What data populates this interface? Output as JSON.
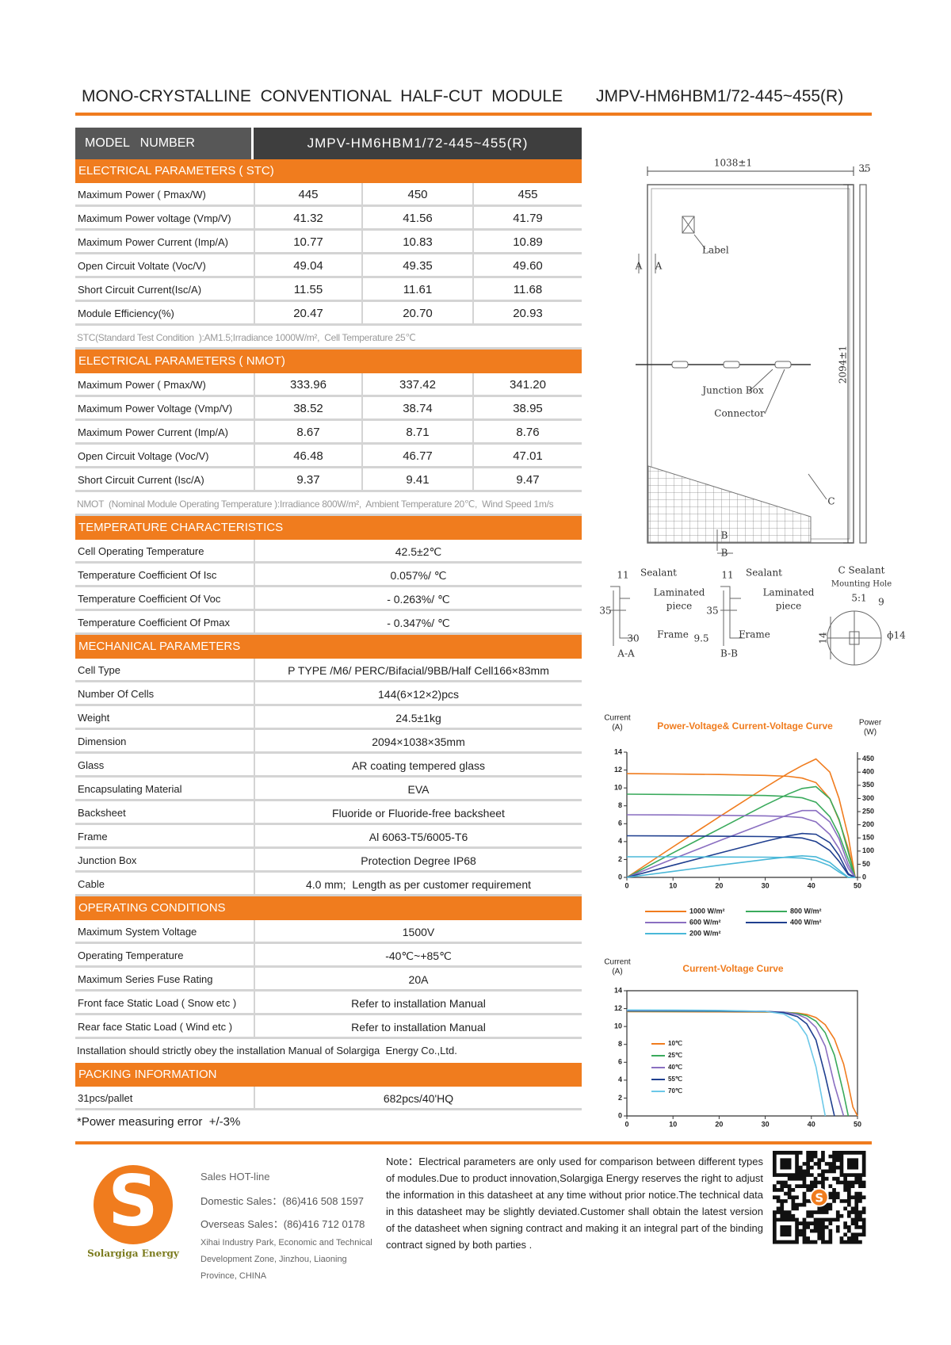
{
  "header": {
    "title": "MONO-CRYSTALLINE  CONVENTIONAL  HALF-CUT  MODULE",
    "model": "JMPV-HM6HBM1/72-445~455(R)"
  },
  "table": {
    "model_label": "MODEL   NUMBER",
    "model_value": "JMPV-HM6HBM1/72-445~455(R)",
    "sections": [
      {
        "title": "ELECTRICAL PARAMETERS ( STC)",
        "rows": [
          [
            "Maximum Power ( Pmax/W)",
            "445",
            "450",
            "455"
          ],
          [
            "Maximum Power voltage (Vmp/V)",
            "41.32",
            "41.56",
            "41.79"
          ],
          [
            "Maximum Power Current (Imp/A)",
            "10.77",
            "10.83",
            "10.89"
          ],
          [
            "Open Circuit Voltate (Voc/V)",
            "49.04",
            "49.35",
            "49.60"
          ],
          [
            "Short Circuit Current(Isc/A)",
            "11.55",
            "11.61",
            "11.68"
          ],
          [
            "Module Efficiency(%)",
            "20.47",
            "20.70",
            "20.93"
          ]
        ],
        "note": "STC(Standard Test Condition  ):AM1.5;Irradiance 1000W/m²,  Cell Temperature 25℃"
      },
      {
        "title": "ELECTRICAL PARAMETERS ( NMOT)",
        "rows": [
          [
            "Maximum Power ( Pmax/W)",
            "333.96",
            "337.42",
            "341.20"
          ],
          [
            "Maximum Power Voltage (Vmp/V)",
            "38.52",
            "38.74",
            "38.95"
          ],
          [
            "Maximum Power Current (Imp/A)",
            "8.67",
            "8.71",
            "8.76"
          ],
          [
            "Open Circuit Voltage (Voc/V)",
            "46.48",
            "46.77",
            "47.01"
          ],
          [
            "Short Circuit Current (Isc/A)",
            "9.37",
            "9.41",
            "9.47"
          ]
        ],
        "note": "NMOT  (Nominal Module Operating Temperature ):Irradiance 800W/m²,  Ambient Temperature 20℃,  Wind Speed 1m/s"
      },
      {
        "title": "TEMPERATURE CHARACTERISTICS",
        "rows": [
          [
            "Cell Operating Temperature",
            "42.5±2℃"
          ],
          [
            "Temperature Coefficient Of Isc",
            "0.057%/ ℃"
          ],
          [
            "Temperature Coefficient Of Voc",
            "- 0.263%/ ℃"
          ],
          [
            "Temperature Coefficient Of Pmax",
            "- 0.347%/ ℃"
          ]
        ]
      },
      {
        "title": "MECHANICAL PARAMETERS",
        "rows": [
          [
            "Cell Type",
            "P TYPE /M6/ PERC/Bifacial/9BB/Half Cell166×83mm"
          ],
          [
            "Number Of Cells",
            "144(6×12×2)pcs"
          ],
          [
            "Weight",
            "24.5±1kg"
          ],
          [
            "Dimension",
            "2094×1038×35mm"
          ],
          [
            "Glass",
            "AR coating tempered glass"
          ],
          [
            "Encapsulating Material",
            "EVA"
          ],
          [
            "Backsheet",
            "Fluoride or Fluoride-free backsheet"
          ],
          [
            "Frame",
            "Al 6063-T5/6005-T6"
          ],
          [
            "Junction Box",
            "Protection Degree IP68"
          ],
          [
            "Cable",
            "4.0 mm;  Length as per customer requirement"
          ]
        ]
      },
      {
        "title": "OPERATING CONDITIONS",
        "rows": [
          [
            "Maximum System Voltage",
            "1500V"
          ],
          [
            "Operating Temperature",
            "-40℃~+85℃"
          ],
          [
            "Maximum Series Fuse Rating",
            "20A"
          ],
          [
            "Front face Static Load ( Snow etc )",
            "Refer to installation Manual"
          ],
          [
            "Rear face Static Load ( Wind etc )",
            "Refer to installation Manual"
          ]
        ],
        "note": "Installation should strictly obey the installation Manual of Solargiga  Energy Co.,Ltd."
      },
      {
        "title": "PACKING INFORMATION",
        "rows": [
          [
            "31pcs/pallet",
            "682pcs/40'HQ"
          ]
        ],
        "note": "*Power measuring error  +/-3%"
      }
    ]
  },
  "drawing": {
    "labels": [
      "1038±1",
      "35",
      "Label",
      "A",
      "A",
      "2094±1",
      "Junction Box",
      "Connector",
      "C",
      "B",
      "B",
      "11",
      "Sealant",
      "Laminated",
      "piece",
      "35",
      "30",
      "Frame",
      "A-A",
      "11",
      "Sealant",
      "Laminated",
      "piece",
      "35",
      "9.5",
      "Frame",
      "B-B",
      "C Sealant",
      "Mounting Hole",
      "5:1",
      "9",
      "14",
      "ϕ14"
    ]
  },
  "chart_data": [
    {
      "type": "line",
      "title": "Power-Voltage& Current-Voltage Curve",
      "ylabel": [
        "Current",
        "(A)"
      ],
      "y2label": [
        "Power",
        "(W)"
      ],
      "x": [
        0,
        10,
        20,
        30,
        35,
        38,
        41,
        44,
        46,
        48,
        49.5
      ],
      "xlim": [
        0,
        50
      ],
      "xticks": [
        0,
        10,
        20,
        30,
        40,
        50
      ],
      "ylim": [
        0,
        14
      ],
      "yticks": [
        0,
        2,
        4,
        6,
        8,
        10,
        12,
        14
      ],
      "y2lim": [
        0,
        476
      ],
      "y2ticks": [
        0,
        50,
        100,
        150,
        200,
        250,
        300,
        350,
        400,
        450
      ],
      "series": [
        {
          "name": "1000 W/m²",
          "color": "#f07c1e",
          "current": [
            11.6,
            11.55,
            11.5,
            11.4,
            11.3,
            11.1,
            10.6,
            8.8,
            6.4,
            3.2,
            0
          ],
          "power": [
            0,
            116,
            230,
            342,
            396,
            425,
            450,
            400,
            300,
            155,
            0
          ]
        },
        {
          "name": "800 W/m²",
          "color": "#3aaa5c",
          "current": [
            9.3,
            9.27,
            9.22,
            9.15,
            9.05,
            8.9,
            8.4,
            6.8,
            4.8,
            2,
            0
          ],
          "power": [
            0,
            93,
            184,
            275,
            317,
            338,
            345,
            299,
            221,
            96,
            0
          ]
        },
        {
          "name": "600 W/m²",
          "color": "#8a6fc1",
          "current": [
            7.0,
            6.98,
            6.94,
            6.88,
            6.8,
            6.68,
            6.2,
            4.8,
            3.2,
            1,
            0
          ],
          "power": [
            0,
            70,
            139,
            206,
            238,
            254,
            254,
            211,
            147,
            48,
            0
          ]
        },
        {
          "name": "400 W/m²",
          "color": "#1f3f8f",
          "current": [
            4.65,
            4.63,
            4.6,
            4.56,
            4.5,
            4.4,
            4.0,
            3.0,
            1.8,
            0.3,
            0
          ],
          "power": [
            0,
            46,
            92,
            137,
            158,
            167,
            164,
            132,
            83,
            14,
            0
          ]
        },
        {
          "name": "200 W/m²",
          "color": "#4ab8d8",
          "current": [
            2.3,
            2.3,
            2.28,
            2.26,
            2.22,
            2.15,
            1.9,
            1.3,
            0.6,
            0,
            0
          ],
          "power": [
            0,
            23,
            46,
            68,
            78,
            82,
            78,
            57,
            28,
            0,
            0
          ]
        }
      ]
    },
    {
      "type": "line",
      "title": "Current-Voltage Curve",
      "ylabel": [
        "Current",
        "(A)"
      ],
      "x": [
        0,
        10,
        20,
        30,
        34,
        37,
        39,
        41,
        43,
        45,
        47,
        48,
        49,
        50
      ],
      "xlim": [
        0,
        50
      ],
      "xticks": [
        0,
        10,
        20,
        30,
        40,
        50
      ],
      "ylim": [
        0,
        14
      ],
      "yticks": [
        0,
        2,
        4,
        6,
        8,
        10,
        12,
        14
      ],
      "series": [
        {
          "name": "10℃",
          "color": "#f07c1e",
          "values": [
            11.65,
            11.64,
            11.63,
            11.62,
            11.58,
            11.5,
            11.35,
            11,
            10.2,
            8.6,
            5.8,
            3.5,
            1,
            0
          ]
        },
        {
          "name": "25℃",
          "color": "#3aaa5c",
          "values": [
            11.7,
            11.69,
            11.68,
            11.65,
            11.6,
            11.45,
            11.2,
            10.6,
            9.3,
            6.8,
            2.5,
            0,
            null,
            null
          ]
        },
        {
          "name": "40℃",
          "color": "#8a6fc1",
          "values": [
            11.75,
            11.74,
            11.72,
            11.68,
            11.6,
            11.35,
            10.9,
            9.9,
            7.8,
            3.5,
            0,
            null,
            null,
            null
          ]
        },
        {
          "name": "55℃",
          "color": "#1f3f8f",
          "values": [
            11.8,
            11.79,
            11.76,
            11.7,
            11.55,
            11.1,
            10.3,
            8.5,
            4.5,
            0,
            null,
            null,
            null,
            null
          ]
        },
        {
          "name": "70℃",
          "color": "#6cc8e8",
          "values": [
            11.85,
            11.84,
            11.8,
            11.7,
            11.4,
            10.5,
            9,
            5.5,
            0,
            null,
            null,
            null,
            null,
            null
          ]
        }
      ]
    }
  ],
  "footer": {
    "hotline": "Sales HOT-line",
    "domestic": "Domestic Sales：(86)416 508 1597",
    "overseas": "Overseas Sales：(86)416 712 0178",
    "address": "Xihai Industry Park, Economic and Technical Development Zone, Jinzhou, Liaoning Province, CHINA",
    "company": "Solargiga Energy",
    "logo_letter": "S",
    "qr_letter": "S",
    "note": "Note：Electrical parameters are only used for comparison between different types of modules.Due to product innovation,Solargiga Energy reserves the right to adjust the information in this datasheet at any time without prior notice.The technical data in this datasheet may be slightly deviated.Customer shall obtain the latest version of the datasheet when signing contract and making it an integral part of the binding contract signed by both parties ."
  }
}
